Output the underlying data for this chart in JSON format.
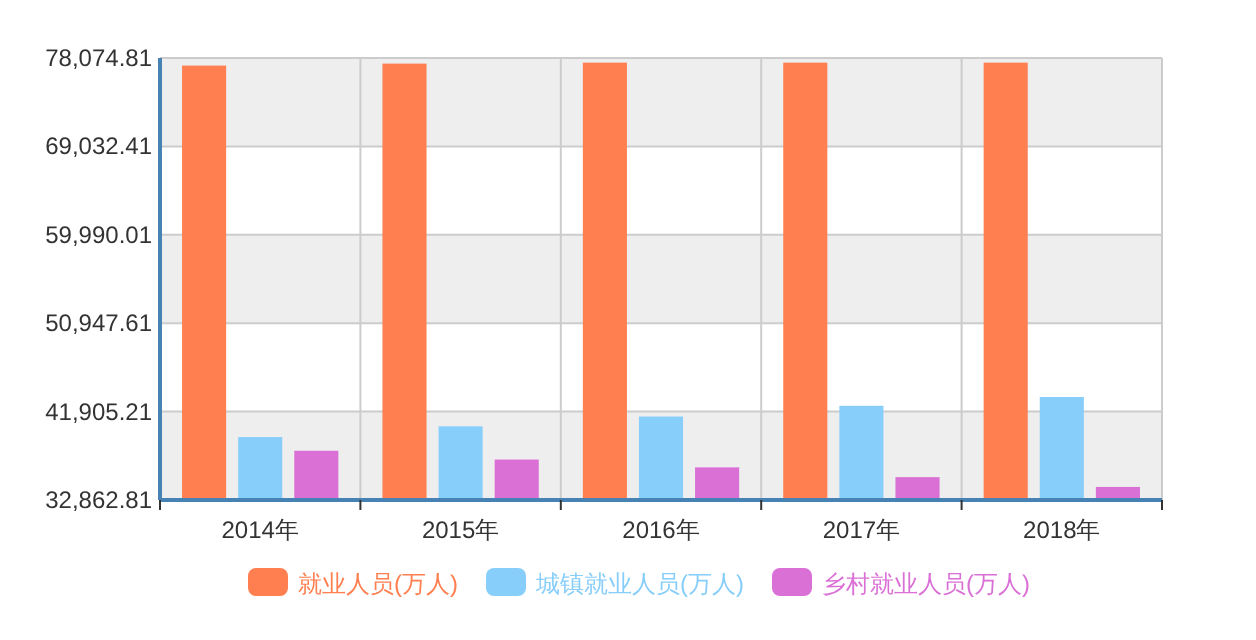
{
  "chart_data": {
    "type": "bar",
    "categories": [
      "2014年",
      "2015年",
      "2016年",
      "2017年",
      "2018年"
    ],
    "series": [
      {
        "name": "就业人员(万人)",
        "color": "#ff7f50",
        "values": [
          77300,
          77500,
          77600,
          77600,
          77600
        ]
      },
      {
        "name": "城镇就业人员(万人)",
        "color": "#87cefa",
        "values": [
          39300,
          40400,
          41400,
          42500,
          43400
        ]
      },
      {
        "name": "乡村就业人员(万人)",
        "color": "#da70d6",
        "values": [
          37900,
          37000,
          36200,
          35200,
          34200
        ]
      }
    ],
    "ylim": [
      32862.81,
      78074.81
    ],
    "yticks": [
      {
        "value": 32862.81,
        "label": "32,862.81"
      },
      {
        "value": 41905.21,
        "label": "41,905.21"
      },
      {
        "value": 50947.61,
        "label": "50,947.61"
      },
      {
        "value": 59990.01,
        "label": "59,990.01"
      },
      {
        "value": 69032.41,
        "label": "69,032.41"
      },
      {
        "value": 78074.81,
        "label": "78,074.81"
      }
    ],
    "grid": true,
    "legend": "bottom"
  }
}
